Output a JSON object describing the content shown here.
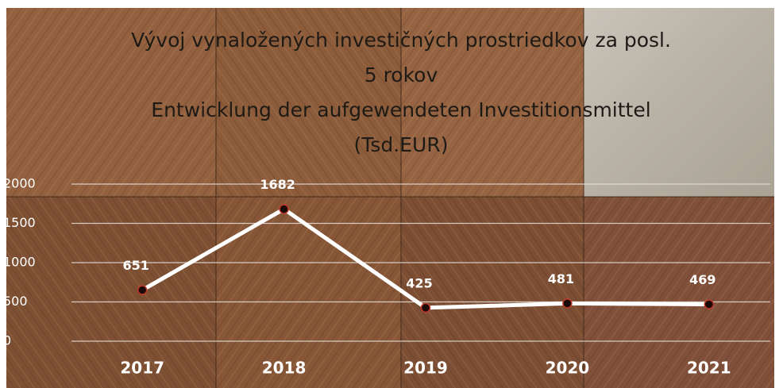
{
  "chart_data": {
    "type": "line",
    "title": [
      "Vývoj vynaložených investičných prostriedkov za posl.",
      "5 rokov",
      "Entwicklung der aufgewendeten Investitionsmittel",
      "(Tsd.EUR)"
    ],
    "categories": [
      "2017",
      "2018",
      "2019",
      "2020",
      "2021"
    ],
    "values": [
      651,
      1682,
      425,
      481,
      469
    ],
    "color": "#ffffff",
    "marker_color": "#1a0a08",
    "ylim": [
      0,
      2000
    ],
    "yticks": [
      0,
      500,
      1000,
      1500,
      2000
    ],
    "grid": true
  }
}
